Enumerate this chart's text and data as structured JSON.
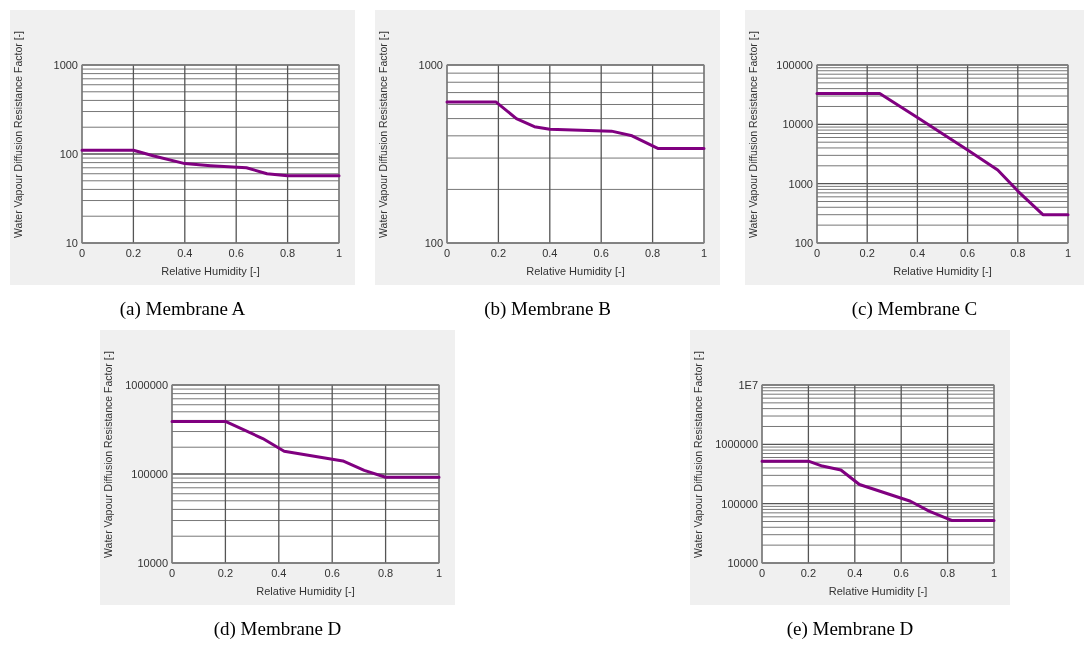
{
  "chart_data": [
    {
      "type": "line",
      "title": "(a) Membrane A",
      "xlabel": "Relative Humidity [-]",
      "ylabel": "Water Vapour Diffusion Resistance Factor [-]",
      "log": true,
      "grid": true,
      "xlim": [
        0,
        1
      ],
      "xticks": [
        0,
        0.2,
        0.4,
        0.6,
        0.8,
        1
      ],
      "ylim": [
        10,
        1000
      ],
      "yticks": [
        10,
        100,
        1000
      ],
      "series": [
        {
          "color": "#800080",
          "x": [
            0,
            0.2,
            0.28,
            0.4,
            0.5,
            0.64,
            0.72,
            0.8,
            1
          ],
          "values": [
            110,
            110,
            95,
            78,
            74,
            70,
            60,
            57,
            57
          ]
        }
      ]
    },
    {
      "type": "line",
      "title": "(b) Membrane B",
      "xlabel": "Relative Humidity [-]",
      "ylabel": "Water Vapour Diffusion Resistance Factor [-]",
      "log": true,
      "grid": true,
      "xlim": [
        0,
        1
      ],
      "xticks": [
        0,
        0.2,
        0.4,
        0.6,
        0.8,
        1
      ],
      "ylim": [
        100,
        1000
      ],
      "yticks": [
        100,
        1000
      ],
      "series": [
        {
          "color": "#800080",
          "x": [
            0,
            0.19,
            0.27,
            0.34,
            0.4,
            0.64,
            0.72,
            0.82,
            1
          ],
          "values": [
            620,
            620,
            500,
            450,
            435,
            425,
            400,
            340,
            340
          ]
        }
      ]
    },
    {
      "type": "line",
      "title": "(c) Membrane C",
      "xlabel": "Relative Humidity [-]",
      "ylabel": "Water Vapour Diffusion Resistance Factor [-]",
      "log": true,
      "grid": true,
      "xlim": [
        0,
        1
      ],
      "xticks": [
        0,
        0.2,
        0.4,
        0.6,
        0.8,
        1
      ],
      "ylim": [
        100,
        100000
      ],
      "yticks": [
        100,
        1000,
        10000,
        100000
      ],
      "series": [
        {
          "color": "#800080",
          "x": [
            0,
            0.25,
            0.4,
            0.6,
            0.72,
            0.8,
            0.9,
            1
          ],
          "values": [
            33000,
            33000,
            13000,
            3700,
            1700,
            750,
            300,
            300
          ]
        }
      ]
    },
    {
      "type": "line",
      "title": "(d) Membrane D",
      "xlabel": "Relative Humidity [-]",
      "ylabel": "Water Vapour Diffusion Resistance Factor [-]",
      "log": true,
      "grid": true,
      "xlim": [
        0,
        1
      ],
      "xticks": [
        0,
        0.2,
        0.4,
        0.6,
        0.8,
        1
      ],
      "ylim": [
        10000,
        1000000
      ],
      "yticks": [
        10000,
        100000,
        1000000
      ],
      "series": [
        {
          "color": "#800080",
          "x": [
            0,
            0.2,
            0.34,
            0.42,
            0.64,
            0.72,
            0.8,
            1
          ],
          "values": [
            390000,
            390000,
            250000,
            180000,
            140000,
            110000,
            92000,
            92000
          ]
        }
      ]
    },
    {
      "type": "line",
      "title": "(e) Membrane D",
      "xlabel": "Relative Humidity [-]",
      "ylabel": "Water Vapour Diffusion Resistance Factor [-]",
      "log": true,
      "grid": true,
      "xlim": [
        0,
        1
      ],
      "xticks": [
        0,
        0.2,
        0.4,
        0.6,
        0.8,
        1
      ],
      "ylim": [
        10000,
        10000000
      ],
      "yticks": [
        10000,
        100000,
        1000000,
        {
          "value": 10000000,
          "label": "1E7"
        }
      ],
      "series": [
        {
          "color": "#800080",
          "x": [
            0,
            0.2,
            0.26,
            0.34,
            0.42,
            0.64,
            0.72,
            0.82,
            1
          ],
          "values": [
            520000,
            520000,
            430000,
            370000,
            210000,
            110000,
            75000,
            52000,
            52000
          ]
        }
      ]
    }
  ]
}
